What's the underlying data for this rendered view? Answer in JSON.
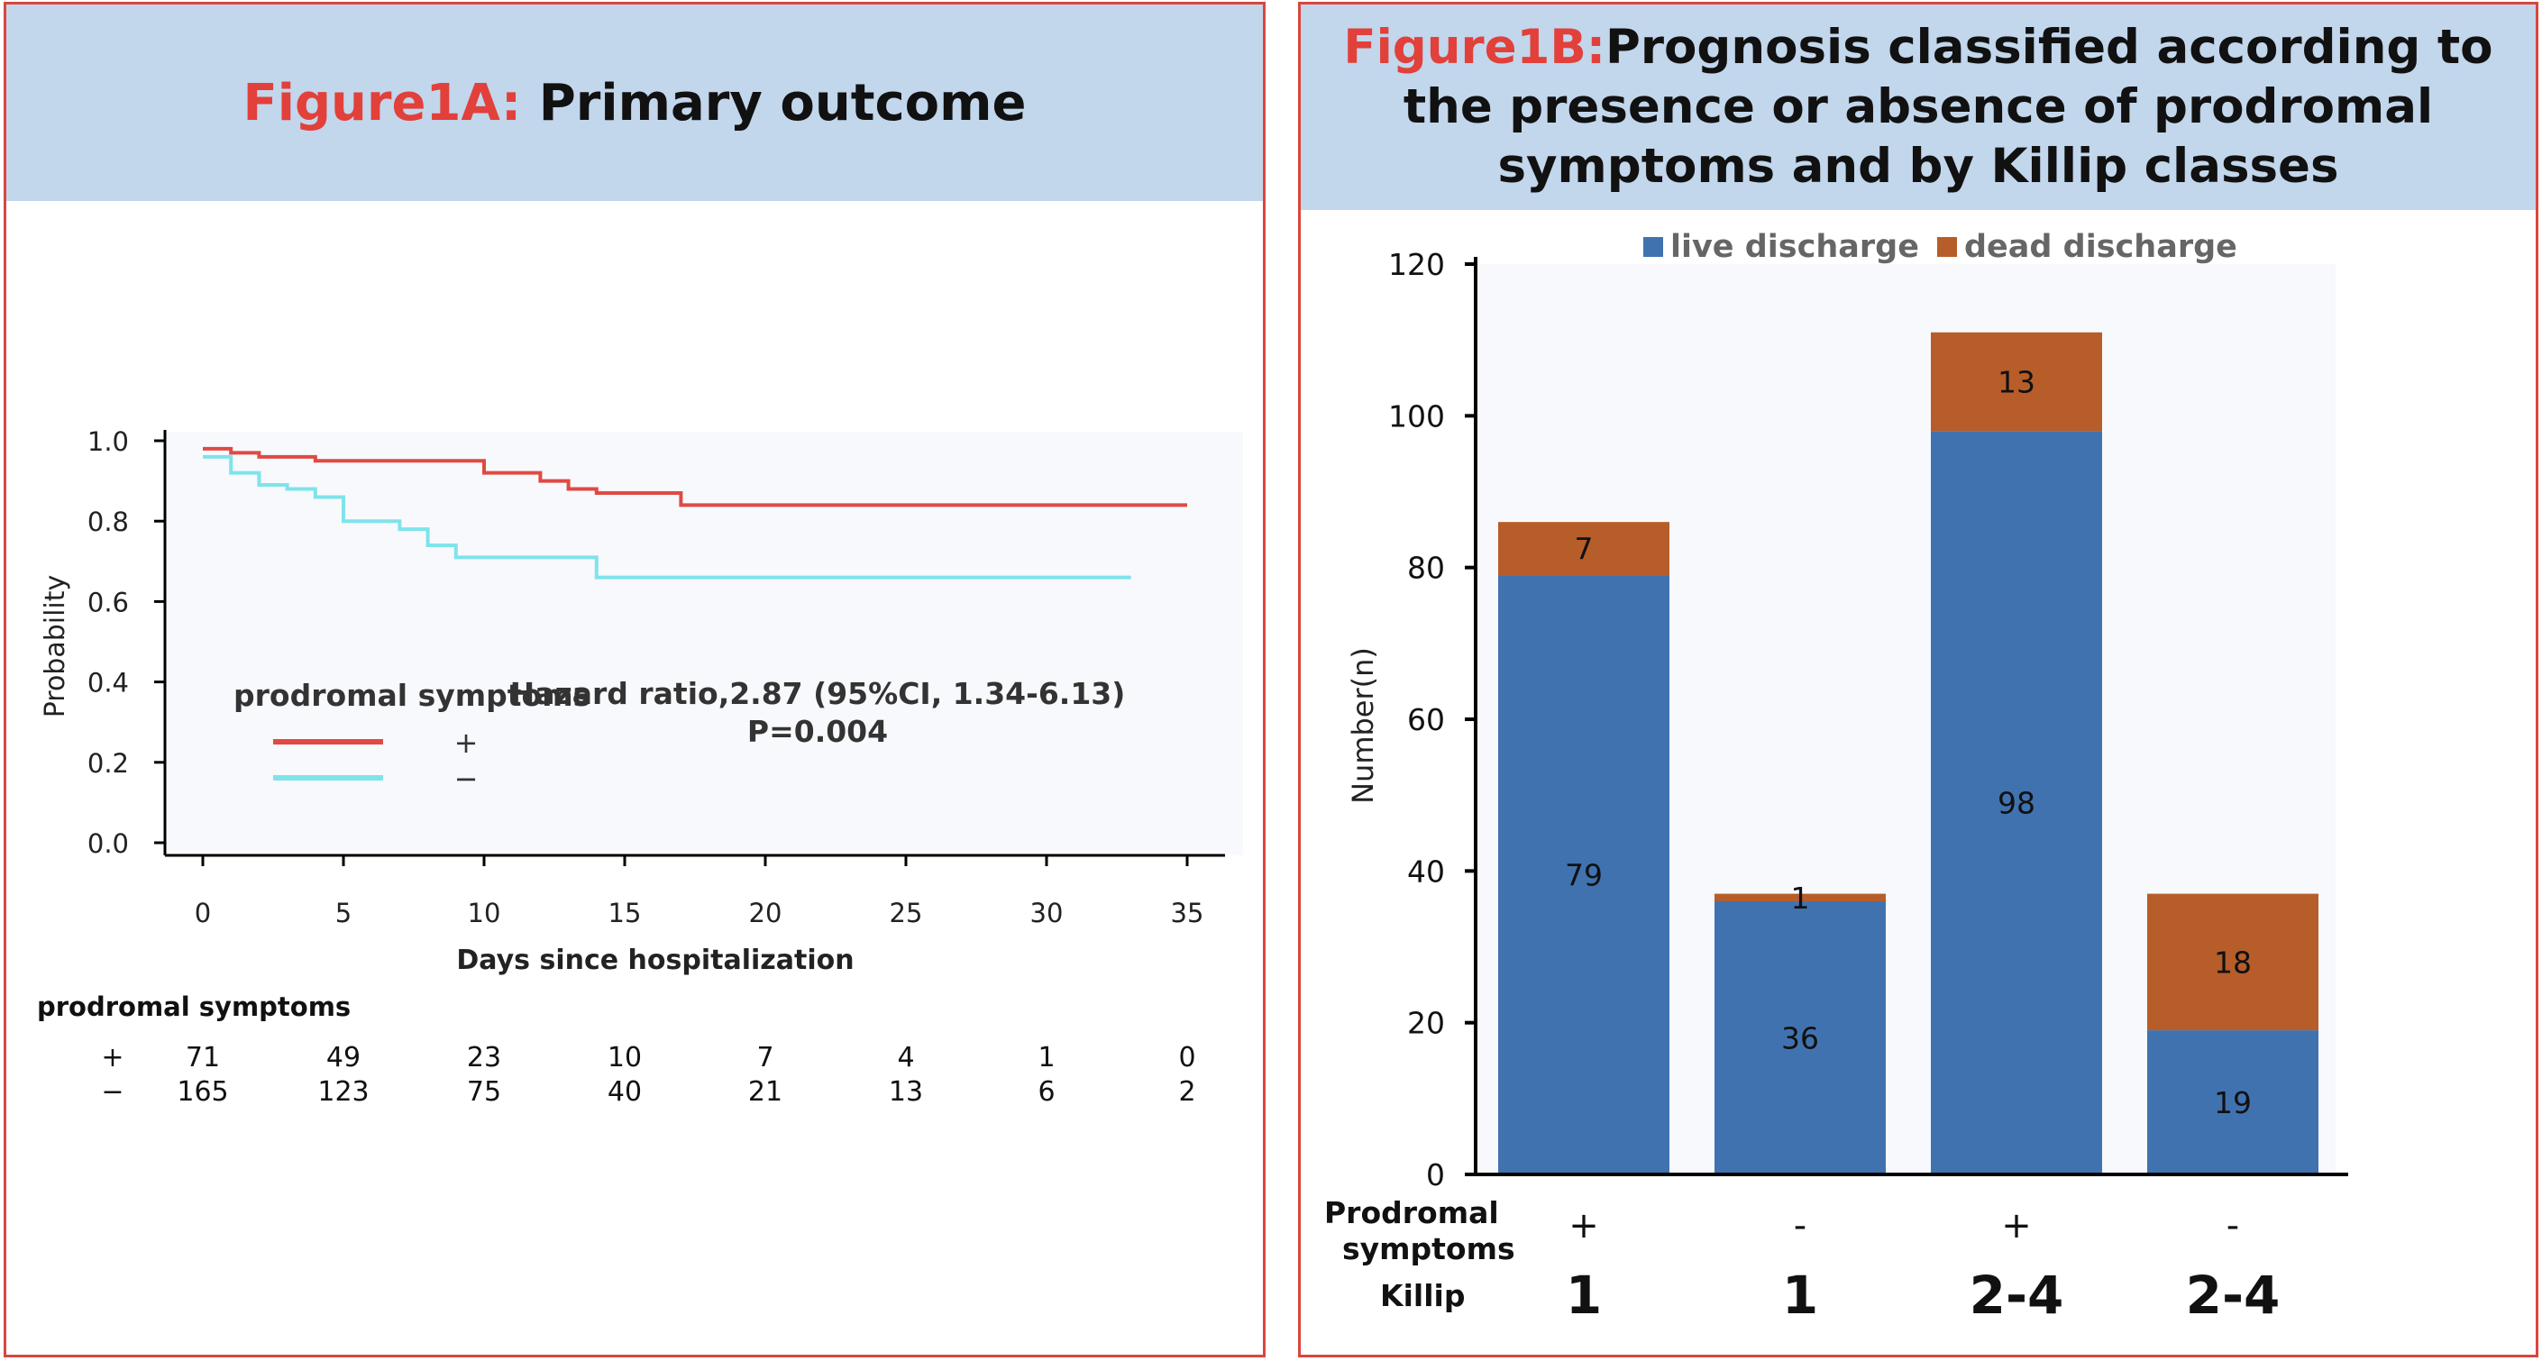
{
  "figureA": {
    "title_prefix": "Figure1A:",
    "title_main": " Primary outcome",
    "legend_title": "prodromal symptoms",
    "legend_plus": "+",
    "legend_minus": "−",
    "hazard_line1": "Hazard ratio,2.87 (95%CI, 1.34-6.13)",
    "hazard_line2": "P=0.004",
    "risk_table_title": "prodromal symptoms",
    "risk_row_labels": [
      "+",
      "−"
    ],
    "colors": {
      "plus": "#e04a43",
      "minus": "#7fe3ea",
      "plot_bg": "#f8f9fd"
    }
  },
  "figureB": {
    "title_prefix": "Figure1B:",
    "title_main": "Prognosis classified according to the presence or absence of prodromal symptoms and by Killip classes",
    "row_label_prodromal": "Prodromal symptoms",
    "row_label_killip": "Killip",
    "colors": {
      "live": "#4172b0",
      "dead": "#b65d2a",
      "plot_bg": "#f8f9fd"
    }
  },
  "chart_data": [
    {
      "type": "line",
      "title": "Primary outcome",
      "xlabel": "Days since hospitalization",
      "ylabel": "Probability",
      "xlim": [
        0,
        35
      ],
      "ylim": [
        0,
        1.0
      ],
      "xticks": [
        0,
        5,
        10,
        15,
        20,
        25,
        30,
        35
      ],
      "yticks": [
        "0.0",
        "0.2",
        "0.4",
        "0.6",
        "0.8",
        "1.0"
      ],
      "series": [
        {
          "name": "prodromal symptoms +",
          "color": "#e04a43",
          "steps": [
            [
              0,
              0.98
            ],
            [
              1,
              0.97
            ],
            [
              2,
              0.96
            ],
            [
              4,
              0.95
            ],
            [
              10,
              0.92
            ],
            [
              12,
              0.9
            ],
            [
              13,
              0.88
            ],
            [
              14,
              0.87
            ],
            [
              17,
              0.84
            ],
            [
              35,
              0.84
            ]
          ]
        },
        {
          "name": "prodromal symptoms −",
          "color": "#7fe3ea",
          "steps": [
            [
              0,
              0.96
            ],
            [
              1,
              0.92
            ],
            [
              2,
              0.89
            ],
            [
              3,
              0.88
            ],
            [
              4,
              0.86
            ],
            [
              5,
              0.8
            ],
            [
              7,
              0.78
            ],
            [
              8,
              0.74
            ],
            [
              9,
              0.71
            ],
            [
              14,
              0.66
            ],
            [
              33,
              0.66
            ]
          ]
        }
      ],
      "risk_table": {
        "x": [
          0,
          5,
          10,
          15,
          20,
          25,
          30,
          35
        ],
        "rows": [
          {
            "label": "+",
            "values": [
              "71",
              "49",
              "23",
              "10",
              "7",
              "4",
              "1",
              "0"
            ]
          },
          {
            "label": "−",
            "values": [
              "165",
              "123",
              "75",
              "40",
              "21",
              "13",
              "6",
              "2"
            ]
          }
        ]
      }
    },
    {
      "type": "bar",
      "stacked": true,
      "title": "Prognosis classified according to the presence or absence of prodromal symptoms and by Killip classes",
      "ylabel": "Number(n)",
      "ylim": [
        0,
        120
      ],
      "yticks": [
        "0",
        "20",
        "40",
        "60",
        "80",
        "100",
        "120"
      ],
      "legend": [
        "live discharge",
        "dead discharge"
      ],
      "legend_position": "top",
      "categories_prodromal": [
        "+",
        "-",
        "+",
        "-"
      ],
      "categories_killip": [
        "1",
        "1",
        "2-4",
        "2-4"
      ],
      "series": [
        {
          "name": "live discharge",
          "color": "#4172b0",
          "values": [
            79,
            36,
            98,
            19
          ]
        },
        {
          "name": "dead discharge",
          "color": "#b65d2a",
          "values": [
            7,
            1,
            13,
            18
          ]
        }
      ]
    }
  ]
}
